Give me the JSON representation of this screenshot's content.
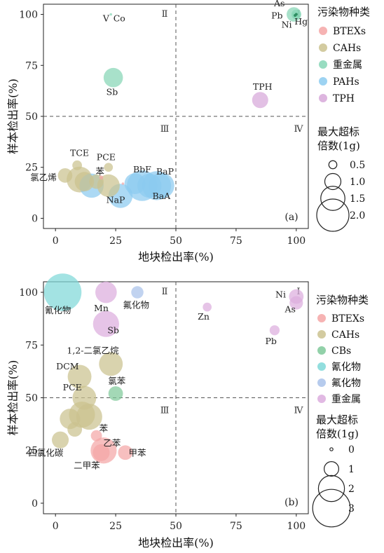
{
  "figure": {
    "colors": {
      "BTEXs": "#f4a6a6",
      "CAHs": "#cbc28f",
      "CBs": "#7fc99a",
      "重金属_a": "#86d6b6",
      "PAHs": "#8ccbf0",
      "TPH": "#d7a8d9",
      "氰化物": "#7fd8d8",
      "氟化物": "#a9c2ea",
      "重金属_b": "#dcadde"
    }
  },
  "chart_data": [
    {
      "type": "scatter",
      "panel_tag": "(a)",
      "xlabel": "地块检出率(%)",
      "ylabel": "样本检出率(%)",
      "xlim": [
        -5,
        105
      ],
      "ylim": [
        -5,
        105
      ],
      "xticks": [
        "0",
        "25",
        "50",
        "75",
        "100"
      ],
      "yticks": [
        "0",
        "25",
        "50",
        "75",
        "100"
      ],
      "quadrants": [
        "Ⅰ",
        "Ⅱ",
        "Ⅲ",
        "Ⅳ"
      ],
      "legend_title": "污染物种类",
      "legend": [
        {
          "name": "BTEXs",
          "color_key": "BTEXs"
        },
        {
          "name": "CAHs",
          "color_key": "CAHs"
        },
        {
          "name": "重金属",
          "color_key": "重金属_a"
        },
        {
          "name": "PAHs",
          "color_key": "PAHs"
        },
        {
          "name": "TPH",
          "color_key": "TPH"
        }
      ],
      "size_title": [
        "最大超标",
        "倍数(1g)"
      ],
      "size_legend": [
        "0.5",
        "1.0",
        "1.5",
        "2.0"
      ],
      "size_values": [
        0.5,
        1.0,
        1.5,
        2.0
      ],
      "points": [
        {
          "x": 19,
          "y": 20,
          "s": 0.25,
          "g": "BTEXs"
        },
        {
          "x": 28,
          "y": 17,
          "s": 0.15,
          "g": "BTEXs"
        },
        {
          "x": 9,
          "y": 26,
          "s": 0.6,
          "g": "CAHs"
        },
        {
          "x": 22,
          "y": 25,
          "s": 0.55,
          "g": "CAHs"
        },
        {
          "x": 4,
          "y": 21,
          "s": 0.9,
          "g": "CAHs"
        },
        {
          "x": 10,
          "y": 19,
          "s": 1.6,
          "g": "CAHs"
        },
        {
          "x": 12,
          "y": 18,
          "s": 1.2,
          "g": "CAHs"
        },
        {
          "x": 17,
          "y": 18,
          "s": 0.9,
          "g": "CAHs"
        },
        {
          "x": 22,
          "y": 16,
          "s": 1.4,
          "g": "CAHs"
        },
        {
          "x": 23,
          "y": 100,
          "s": 0.15,
          "g": "重金属_a"
        },
        {
          "x": 24,
          "y": 69,
          "s": 1.2,
          "g": "重金属_a"
        },
        {
          "x": 99,
          "y": 100,
          "s": 0.9,
          "g": "重金属_a"
        },
        {
          "x": 100,
          "y": 100,
          "s": 0.6,
          "g": "重金属_a"
        },
        {
          "x": 99.5,
          "y": 99.5,
          "s": 0.4,
          "g": "重金属_a"
        },
        {
          "x": 15,
          "y": 16,
          "s": 1.5,
          "g": "PAHs"
        },
        {
          "x": 27,
          "y": 11,
          "s": 1.5,
          "g": "PAHs"
        },
        {
          "x": 33,
          "y": 17,
          "s": 1.3,
          "g": "PAHs"
        },
        {
          "x": 36,
          "y": 16,
          "s": 1.9,
          "g": "PAHs"
        },
        {
          "x": 39,
          "y": 16,
          "s": 1.5,
          "g": "PAHs"
        },
        {
          "x": 42,
          "y": 16,
          "s": 1.8,
          "g": "PAHs"
        },
        {
          "x": 44,
          "y": 16,
          "s": 1.6,
          "g": "PAHs"
        },
        {
          "x": 85,
          "y": 58,
          "s": 1.0,
          "g": "TPH"
        }
      ],
      "point_labels": [
        {
          "text": "V",
          "x": 21,
          "y": 96.5
        },
        {
          "text": "Co",
          "x": 26.5,
          "y": 96.5
        },
        {
          "text": "As",
          "x": 93,
          "y": 104
        },
        {
          "text": "Pb",
          "x": 92,
          "y": 98
        },
        {
          "text": "Ni",
          "x": 96,
          "y": 93.5
        },
        {
          "text": "Hg",
          "x": 102,
          "y": 95
        },
        {
          "text": "Sb",
          "x": 23.5,
          "y": 60.5
        },
        {
          "text": "TPH",
          "x": 86,
          "y": 63
        },
        {
          "text": "TCE",
          "x": 10,
          "y": 30.5
        },
        {
          "text": "PCE",
          "x": 21,
          "y": 28.5
        },
        {
          "text": "苯",
          "x": 18.5,
          "y": 21.5
        },
        {
          "text": "氯乙烯",
          "x": -5,
          "y": 18.5
        },
        {
          "text": "BbF",
          "x": 36,
          "y": 22.5
        },
        {
          "text": "BaP",
          "x": 45.5,
          "y": 21.5
        },
        {
          "text": "NaP",
          "x": 25,
          "y": 7.5
        },
        {
          "text": "BaA",
          "x": 44,
          "y": 9.5
        }
      ]
    },
    {
      "type": "scatter",
      "panel_tag": "(b)",
      "xlabel": "地块检出率(%)",
      "ylabel": "样本检出率(%)",
      "xlim": [
        -5,
        105
      ],
      "ylim": [
        -5,
        105
      ],
      "xticks": [
        "0",
        "25",
        "50",
        "75",
        "100"
      ],
      "yticks": [
        "0",
        "25",
        "50",
        "75",
        "100"
      ],
      "quadrants": [
        "Ⅰ",
        "Ⅱ",
        "Ⅲ",
        "Ⅳ"
      ],
      "legend_title": "污染物种类",
      "legend": [
        {
          "name": "BTEXs",
          "color_key": "BTEXs"
        },
        {
          "name": "CAHs",
          "color_key": "CAHs"
        },
        {
          "name": "CBs",
          "color_key": "CBs"
        },
        {
          "name": "氰化物",
          "color_key": "氰化物"
        },
        {
          "name": "氟化物",
          "color_key": "氟化物"
        },
        {
          "name": "重金属",
          "color_key": "重金属_b"
        }
      ],
      "size_title": [
        "最大超标",
        "倍数(1g)"
      ],
      "size_legend": [
        "0",
        "1",
        "2",
        "3"
      ],
      "size_values": [
        0,
        1,
        2,
        3
      ],
      "points": [
        {
          "x": 17,
          "y": 32,
          "s": 0.7,
          "g": "BTEXs"
        },
        {
          "x": 20,
          "y": 25,
          "s": 2.0,
          "g": "BTEXs"
        },
        {
          "x": 19,
          "y": 24,
          "s": 1.2,
          "g": "BTEXs"
        },
        {
          "x": 29,
          "y": 24,
          "s": 1.0,
          "g": "BTEXs"
        },
        {
          "x": 2,
          "y": 30,
          "s": 1.2,
          "g": "CAHs"
        },
        {
          "x": 6,
          "y": 40,
          "s": 1.5,
          "g": "CAHs"
        },
        {
          "x": 8,
          "y": 35,
          "s": 1.0,
          "g": "CAHs"
        },
        {
          "x": 11,
          "y": 42,
          "s": 2.0,
          "g": "CAHs"
        },
        {
          "x": 14,
          "y": 41,
          "s": 2.0,
          "g": "CAHs"
        },
        {
          "x": 12,
          "y": 50,
          "s": 1.8,
          "g": "CAHs"
        },
        {
          "x": 10,
          "y": 60,
          "s": 1.8,
          "g": "CAHs"
        },
        {
          "x": 23,
          "y": 66,
          "s": 1.8,
          "g": "CAHs"
        },
        {
          "x": 25,
          "y": 52,
          "s": 1.0,
          "g": "CBs"
        },
        {
          "x": 3,
          "y": 100,
          "s": 3.0,
          "g": "氰化物"
        },
        {
          "x": 34,
          "y": 100,
          "s": 0.8,
          "g": "氟化物"
        },
        {
          "x": 21,
          "y": 100,
          "s": 1.6,
          "g": "重金属_b"
        },
        {
          "x": 21,
          "y": 85,
          "s": 2.0,
          "g": "重金属_b"
        },
        {
          "x": 63,
          "y": 93,
          "s": 0.5,
          "g": "重金属_b"
        },
        {
          "x": 91,
          "y": 82,
          "s": 0.6,
          "g": "重金属_b"
        },
        {
          "x": 100,
          "y": 98,
          "s": 1.0,
          "g": "重金属_b"
        },
        {
          "x": 100,
          "y": 95,
          "s": 0.9,
          "g": "重金属_b"
        }
      ],
      "point_labels": [
        {
          "text": "氰化物",
          "x": 1,
          "y": 90
        },
        {
          "text": "Mn",
          "x": 19,
          "y": 91
        },
        {
          "text": "氟化物",
          "x": 33.5,
          "y": 92.5
        },
        {
          "text": "Sb",
          "x": 24,
          "y": 80.5
        },
        {
          "text": "Zn",
          "x": 61.5,
          "y": 87
        },
        {
          "text": "Ni",
          "x": 93.5,
          "y": 97.5
        },
        {
          "text": "As",
          "x": 97.5,
          "y": 90.5
        },
        {
          "text": "Pb",
          "x": 89.5,
          "y": 75.5
        },
        {
          "text": "1,2-二氯乙烷",
          "x": 15.5,
          "y": 71
        },
        {
          "text": "DCM",
          "x": 5,
          "y": 63.5
        },
        {
          "text": "氯苯",
          "x": 25.5,
          "y": 56.5
        },
        {
          "text": "PCE",
          "x": 7,
          "y": 53.5
        },
        {
          "text": "苯",
          "x": 20,
          "y": 34
        },
        {
          "text": "乙苯",
          "x": 23.5,
          "y": 27
        },
        {
          "text": "四氯化碳",
          "x": -4,
          "y": 22.5
        },
        {
          "text": "甲苯",
          "x": 34,
          "y": 22.5
        },
        {
          "text": "二甲苯",
          "x": 13,
          "y": 16.5
        }
      ]
    }
  ]
}
